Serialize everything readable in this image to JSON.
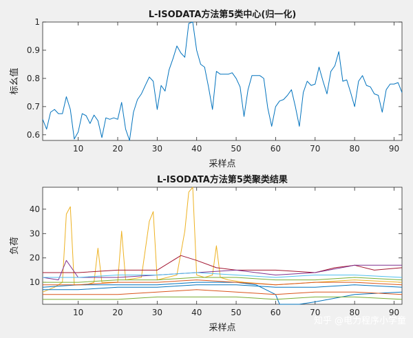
{
  "chart_data": [
    {
      "type": "line",
      "title": "L-ISODATA方法第5类中心(归一化)",
      "xlabel": "采样点",
      "ylabel": "标幺值",
      "xlim": [
        1,
        92
      ],
      "ylim": [
        0.58,
        1.0
      ],
      "xticks": [
        10,
        20,
        30,
        40,
        50,
        60,
        70,
        80,
        90
      ],
      "yticks": [
        0.6,
        0.7,
        0.8,
        0.9,
        1
      ],
      "ytick_labels": [
        "0.6",
        "0.7",
        "0.8",
        "0.9",
        "1"
      ],
      "grid": false,
      "series": [
        {
          "color": "#0072bd",
          "x": [
            1,
            2,
            3,
            4,
            5,
            6,
            7,
            8,
            9,
            10,
            11,
            12,
            13,
            14,
            15,
            16,
            17,
            18,
            19,
            20,
            21,
            22,
            23,
            24,
            25,
            26,
            27,
            28,
            29,
            30,
            31,
            32,
            33,
            34,
            35,
            36,
            37,
            38,
            39,
            40,
            41,
            42,
            43,
            44,
            45,
            46,
            47,
            48,
            49,
            50,
            51,
            52,
            53,
            54,
            55,
            56,
            57,
            58,
            59,
            60,
            61,
            62,
            63,
            64,
            65,
            66,
            67,
            68,
            69,
            70,
            71,
            72,
            73,
            74,
            75,
            76,
            77,
            78,
            79,
            80,
            81,
            82,
            83,
            84,
            85,
            86,
            87,
            88,
            89,
            90,
            91,
            92
          ],
          "values": [
            0.655,
            0.62,
            0.68,
            0.69,
            0.675,
            0.675,
            0.735,
            0.69,
            0.585,
            0.61,
            0.675,
            0.668,
            0.64,
            0.67,
            0.65,
            0.59,
            0.66,
            0.655,
            0.66,
            0.655,
            0.715,
            0.62,
            0.58,
            0.68,
            0.725,
            0.745,
            0.775,
            0.805,
            0.79,
            0.69,
            0.775,
            0.755,
            0.83,
            0.87,
            0.915,
            0.89,
            0.875,
            0.995,
            1.0,
            0.9,
            0.85,
            0.84,
            0.77,
            0.69,
            0.825,
            0.815,
            0.815,
            0.815,
            0.82,
            0.8,
            0.77,
            0.665,
            0.76,
            0.81,
            0.81,
            0.81,
            0.8,
            0.695,
            0.63,
            0.7,
            0.72,
            0.725,
            0.74,
            0.76,
            0.7,
            0.63,
            0.75,
            0.79,
            0.775,
            0.78,
            0.84,
            0.79,
            0.745,
            0.825,
            0.845,
            0.895,
            0.79,
            0.795,
            0.75,
            0.7,
            0.79,
            0.81,
            0.775,
            0.77,
            0.745,
            0.74,
            0.68,
            0.76,
            0.78,
            0.78,
            0.785,
            0.75
          ]
        }
      ]
    },
    {
      "type": "line",
      "title": "L-ISODATA方法第5类聚类结果",
      "xlabel": "采样点",
      "ylabel": "负荷",
      "xlim": [
        1,
        92
      ],
      "ylim": [
        1,
        49
      ],
      "xticks": [
        10,
        20,
        30,
        40,
        50,
        60,
        70,
        80,
        90
      ],
      "yticks": [
        10,
        20,
        30,
        40
      ],
      "ytick_labels": [
        "10",
        "20",
        "30",
        "40"
      ],
      "grid": false,
      "series": [
        {
          "color": "#edb120",
          "x": [
            1,
            4,
            6,
            7,
            8,
            9,
            12,
            14,
            15,
            16,
            19,
            20,
            21,
            22,
            26,
            28,
            29,
            30,
            35,
            37,
            38,
            39,
            40,
            42,
            44,
            45,
            46,
            48,
            52,
            60,
            70,
            80,
            92
          ],
          "values": [
            6,
            8,
            10,
            38,
            41,
            9,
            9,
            10,
            24,
            10,
            10,
            10,
            31,
            11,
            12,
            35,
            39,
            11,
            13,
            31,
            47,
            49,
            13,
            12,
            13,
            25,
            12,
            11,
            10,
            9,
            10,
            11,
            10
          ]
        },
        {
          "color": "#0072bd",
          "x": [
            1,
            10,
            20,
            30,
            40,
            50,
            55,
            60,
            61,
            62,
            65,
            66,
            70,
            80,
            92
          ],
          "values": [
            8,
            9,
            9,
            9,
            10,
            10,
            9,
            5,
            1,
            1,
            1,
            1,
            2,
            5,
            6
          ]
        },
        {
          "color": "#a2142f",
          "x": [
            1,
            10,
            20,
            30,
            36,
            38,
            40,
            45,
            50,
            60,
            70,
            75,
            80,
            85,
            92
          ],
          "values": [
            14,
            14,
            15,
            15,
            21,
            20,
            19,
            16,
            15,
            15,
            14,
            16,
            17,
            15,
            16
          ]
        },
        {
          "color": "#7e2f8e",
          "x": [
            1,
            5,
            7,
            10,
            20,
            30,
            40,
            50,
            60,
            70,
            80,
            92
          ],
          "values": [
            12,
            11,
            19,
            12,
            12,
            13,
            14,
            15,
            13,
            14,
            17,
            17
          ]
        },
        {
          "color": "#d95319",
          "x": [
            1,
            10,
            20,
            30,
            40,
            50,
            60,
            70,
            80,
            92
          ],
          "values": [
            5,
            5,
            5,
            6,
            7,
            6,
            5,
            6,
            6,
            5
          ]
        },
        {
          "color": "#77ac30",
          "x": [
            1,
            10,
            20,
            30,
            40,
            50,
            60,
            70,
            80,
            92
          ],
          "values": [
            10,
            10,
            11,
            11,
            12,
            12,
            11,
            11,
            12,
            11
          ]
        },
        {
          "color": "#4dbeee",
          "x": [
            1,
            10,
            20,
            30,
            40,
            50,
            60,
            70,
            80,
            92
          ],
          "values": [
            12,
            12,
            13,
            13,
            14,
            13,
            12,
            13,
            13,
            12
          ]
        },
        {
          "color": "#0072bd",
          "x": [
            1,
            10,
            20,
            30,
            40,
            50,
            60,
            70,
            80,
            92
          ],
          "values": [
            7,
            7,
            8,
            8,
            9,
            9,
            8,
            8,
            9,
            8
          ]
        },
        {
          "color": "#d95319",
          "x": [
            1,
            10,
            20,
            30,
            40,
            50,
            60,
            70,
            80,
            92
          ],
          "values": [
            9,
            9,
            10,
            10,
            11,
            10,
            9,
            10,
            10,
            9
          ]
        },
        {
          "color": "#77ac30",
          "x": [
            1,
            10,
            20,
            30,
            40,
            50,
            60,
            70,
            80,
            92
          ],
          "values": [
            3,
            3,
            3,
            4,
            4,
            4,
            3,
            4,
            4,
            3
          ]
        }
      ]
    }
  ],
  "watermark": "知乎 @电力程序小学童"
}
